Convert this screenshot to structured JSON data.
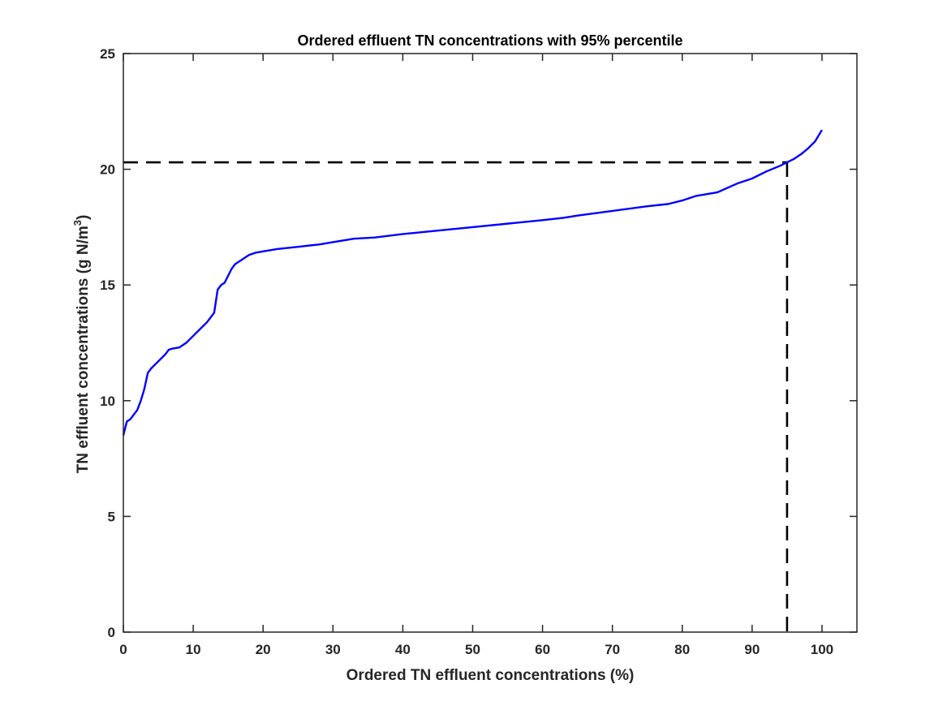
{
  "chart_data": {
    "type": "line",
    "title": "Ordered effluent TN concentrations with 95% percentile",
    "xlabel": "Ordered TN effluent concentrations (%)",
    "ylabel_main": "TN effluent concentrations (g N/m",
    "ylabel_sup": "3",
    "ylabel_close": ")",
    "xlim": [
      0,
      105
    ],
    "ylim": [
      0,
      25
    ],
    "xticks": [
      0,
      10,
      20,
      30,
      40,
      50,
      60,
      70,
      80,
      90,
      100
    ],
    "yticks": [
      0,
      5,
      10,
      15,
      20,
      25
    ],
    "grid": false,
    "series": [
      {
        "color": "#0000ff",
        "x": [
          0,
          0.5,
          1,
          1.5,
          2,
          2.5,
          3,
          3.5,
          4,
          5,
          6,
          6.5,
          7,
          8,
          9,
          10,
          11,
          12,
          12.5,
          13,
          13.5,
          14,
          14.5,
          15,
          15.5,
          16,
          17,
          18,
          19,
          20,
          22,
          25,
          28,
          30,
          33,
          36,
          40,
          45,
          50,
          55,
          60,
          63,
          65,
          70,
          75,
          78,
          80,
          82,
          85,
          88,
          90,
          92,
          94,
          95,
          96,
          97,
          98,
          99,
          99.5,
          100
        ],
        "values": [
          8.5,
          9.1,
          9.2,
          9.4,
          9.6,
          10.0,
          10.5,
          11.2,
          11.4,
          11.7,
          12.0,
          12.2,
          12.25,
          12.3,
          12.5,
          12.8,
          13.1,
          13.4,
          13.6,
          13.8,
          14.8,
          15.0,
          15.1,
          15.4,
          15.7,
          15.9,
          16.1,
          16.3,
          16.4,
          16.45,
          16.55,
          16.65,
          16.75,
          16.85,
          17.0,
          17.05,
          17.2,
          17.35,
          17.5,
          17.65,
          17.8,
          17.9,
          18.0,
          18.2,
          18.4,
          18.5,
          18.65,
          18.85,
          19.0,
          19.4,
          19.6,
          19.9,
          20.15,
          20.3,
          20.45,
          20.65,
          20.9,
          21.2,
          21.45,
          21.7
        ]
      }
    ],
    "percentile_line": {
      "x": 95,
      "y": 20.3,
      "color": "#000000",
      "style": "dashed"
    }
  }
}
